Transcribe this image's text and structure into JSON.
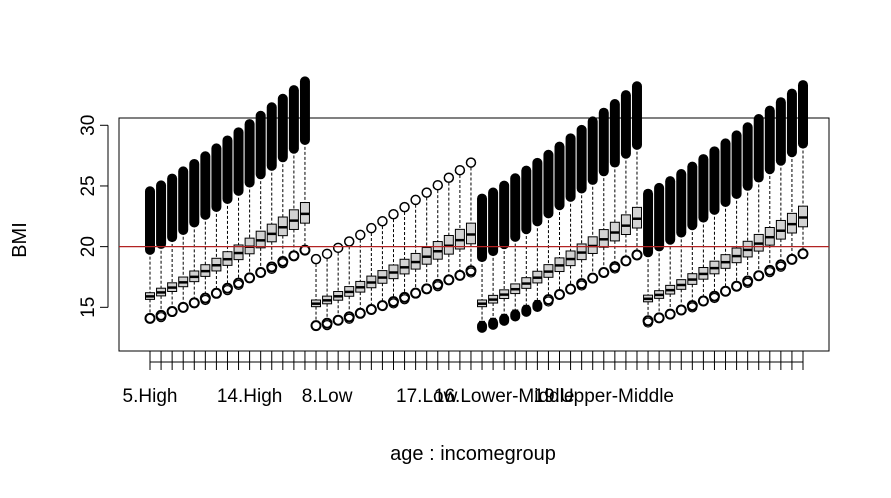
{
  "chart_data": {
    "type": "boxplot",
    "xlabel": "age : incomegroup",
    "ylabel": "BMI",
    "ylim": [
      11.4,
      30.6
    ],
    "yticks": [
      15,
      20,
      25,
      30
    ],
    "reference_line": {
      "y": 20,
      "color": "#b22222"
    },
    "x_tick_labels": [
      "5.High",
      "14.High",
      "8.Low",
      "17.Low",
      "16.Lower-Middle",
      "19.Upper-Middle"
    ],
    "x_tick_label_positions": [
      1,
      10,
      17,
      26,
      33,
      42
    ],
    "box_fill": "#d3d3d3",
    "groups": [
      {
        "name": "High",
        "ages": [
          5,
          6,
          7,
          8,
          9,
          10,
          11,
          12,
          13,
          14,
          15,
          16,
          17,
          18,
          19
        ],
        "start_median": 15.9,
        "end_median": 22.7
      },
      {
        "name": "Low",
        "ages": [
          5,
          6,
          7,
          8,
          9,
          10,
          11,
          12,
          13,
          14,
          15,
          16,
          17,
          18,
          19
        ],
        "start_median": 15.3,
        "end_median": 21.0
      },
      {
        "name": "Lower-Middle",
        "ages": [
          5,
          6,
          7,
          8,
          9,
          10,
          11,
          12,
          13,
          14,
          15,
          16,
          17,
          18,
          19
        ],
        "start_median": 15.3,
        "end_median": 22.3
      },
      {
        "name": "Upper-Middle",
        "ages": [
          5,
          6,
          7,
          8,
          9,
          10,
          11,
          12,
          13,
          14,
          15,
          16,
          17,
          18,
          19
        ],
        "start_median": 15.7,
        "end_median": 22.4
      }
    ],
    "grid": false,
    "legend": "none"
  }
}
